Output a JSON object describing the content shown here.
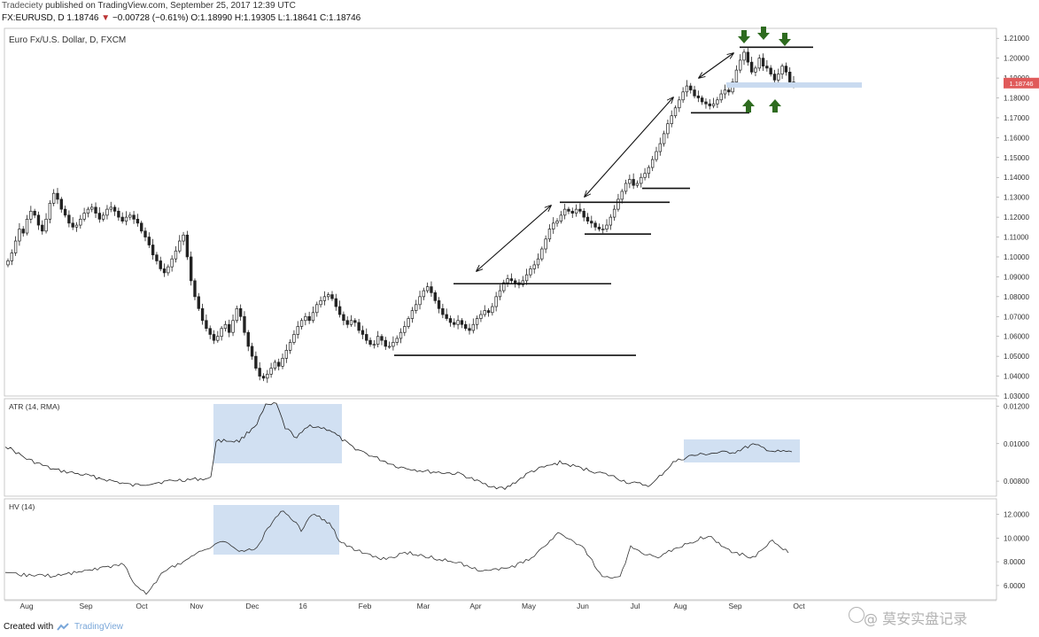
{
  "header": {
    "published_line": {
      "author": "Tradeciety",
      "text": "published on TradingView.com, September 25, 2017 12:39 UTC"
    },
    "quote_line": {
      "symbol": "FX:EURUSD, D",
      "last": "1.18746",
      "change": "−0.00728 (−0.61%)",
      "ohlc": "O:1.18990 H:1.19305 L:1.18641 C:1.18746"
    }
  },
  "footer": {
    "created_with": "Created with",
    "brand": "TradingView",
    "watermark": "@ 莫安实盘记录"
  },
  "colors": {
    "line": "#111111",
    "highlight": "#c9daf0",
    "arrow_green": "#2e6b1f",
    "price_badge": "#e05a5a",
    "grid": "#dddddd"
  },
  "chart_data": [
    {
      "type": "candlestick",
      "title": "Euro Fx/U.S. Dollar, D, FXCM",
      "ylim": [
        1.03,
        1.215
      ],
      "y_ticks": [
        "1.21000",
        "1.20000",
        "1.19000",
        "1.18000",
        "1.17000",
        "1.16000",
        "1.15000",
        "1.14000",
        "1.13000",
        "1.12000",
        "1.11000",
        "1.10000",
        "1.09000",
        "1.08000",
        "1.07000",
        "1.06000",
        "1.05000",
        "1.04000",
        "1.03000"
      ],
      "last_price_label": "1.18746",
      "x_labels": [
        "Aug",
        "Sep",
        "Oct",
        "Nov",
        "Dec",
        "16",
        "Feb",
        "Mar",
        "Apr",
        "May",
        "Jun",
        "Jul",
        "Aug",
        "Sep",
        "Oct"
      ],
      "series_close": [
        1.098,
        1.102,
        1.108,
        1.114,
        1.112,
        1.119,
        1.123,
        1.121,
        1.116,
        1.113,
        1.119,
        1.127,
        1.132,
        1.129,
        1.124,
        1.121,
        1.117,
        1.115,
        1.116,
        1.119,
        1.122,
        1.124,
        1.125,
        1.122,
        1.119,
        1.121,
        1.124,
        1.125,
        1.123,
        1.12,
        1.118,
        1.12,
        1.121,
        1.119,
        1.117,
        1.113,
        1.11,
        1.106,
        1.101,
        1.098,
        1.094,
        1.092,
        1.095,
        1.099,
        1.103,
        1.108,
        1.111,
        1.1,
        1.088,
        1.08,
        1.074,
        1.068,
        1.064,
        1.061,
        1.058,
        1.06,
        1.064,
        1.066,
        1.062,
        1.068,
        1.074,
        1.07,
        1.062,
        1.055,
        1.05,
        1.044,
        1.04,
        1.039,
        1.041,
        1.044,
        1.047,
        1.045,
        1.049,
        1.053,
        1.057,
        1.061,
        1.065,
        1.068,
        1.07,
        1.068,
        1.072,
        1.076,
        1.078,
        1.08,
        1.081,
        1.079,
        1.075,
        1.071,
        1.068,
        1.066,
        1.068,
        1.067,
        1.063,
        1.061,
        1.058,
        1.056,
        1.056,
        1.06,
        1.058,
        1.055,
        1.055,
        1.057,
        1.059,
        1.062,
        1.065,
        1.069,
        1.073,
        1.076,
        1.08,
        1.083,
        1.085,
        1.082,
        1.078,
        1.074,
        1.071,
        1.069,
        1.067,
        1.066,
        1.068,
        1.066,
        1.064,
        1.063,
        1.066,
        1.069,
        1.071,
        1.073,
        1.072,
        1.075,
        1.08,
        1.083,
        1.087,
        1.089,
        1.088,
        1.087,
        1.086,
        1.088,
        1.091,
        1.094,
        1.096,
        1.099,
        1.104,
        1.109,
        1.114,
        1.117,
        1.118,
        1.121,
        1.124,
        1.123,
        1.122,
        1.124,
        1.123,
        1.12,
        1.118,
        1.117,
        1.115,
        1.114,
        1.114,
        1.116,
        1.12,
        1.124,
        1.129,
        1.133,
        1.137,
        1.139,
        1.136,
        1.137,
        1.14,
        1.142,
        1.145,
        1.149,
        1.153,
        1.157,
        1.162,
        1.167,
        1.171,
        1.175,
        1.179,
        1.183,
        1.186,
        1.184,
        1.181,
        1.18,
        1.178,
        1.177,
        1.176,
        1.177,
        1.179,
        1.182,
        1.184,
        1.183,
        1.188,
        1.194,
        1.199,
        1.203,
        1.198,
        1.193,
        1.195,
        1.2,
        1.196,
        1.195,
        1.192,
        1.189,
        1.192,
        1.196,
        1.193,
        1.188,
        1.187
      ],
      "annotations": {
        "horizontal_levels": [
          1.0505,
          1.0865,
          1.1115,
          1.1275,
          1.1345,
          1.1725,
          1.2055
        ],
        "highlight_level": 1.1865,
        "trend_arrows": 3,
        "green_arrows_down": 3,
        "green_arrows_up": 2
      }
    },
    {
      "type": "line",
      "title": "ATR (14, RMA)",
      "ylim": [
        0.0072,
        0.0124
      ],
      "y_ticks": [
        "0.01200",
        "0.01000",
        "0.00800"
      ],
      "highlighted_regions": 2
    },
    {
      "type": "line",
      "title": "HV (14)",
      "ylim": [
        4.8,
        13.3
      ],
      "y_ticks": [
        "12.0000",
        "10.0000",
        "8.0000",
        "6.0000"
      ],
      "highlighted_regions": 1
    }
  ]
}
